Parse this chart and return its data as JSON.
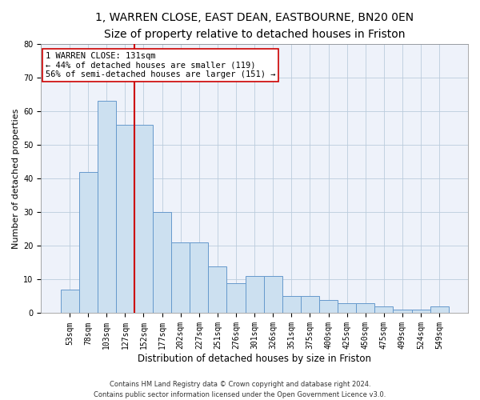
{
  "title": "1, WARREN CLOSE, EAST DEAN, EASTBOURNE, BN20 0EN",
  "subtitle": "Size of property relative to detached houses in Friston",
  "xlabel": "Distribution of detached houses by size in Friston",
  "ylabel": "Number of detached properties",
  "categories": [
    "53sqm",
    "78sqm",
    "103sqm",
    "127sqm",
    "152sqm",
    "177sqm",
    "202sqm",
    "227sqm",
    "251sqm",
    "276sqm",
    "301sqm",
    "326sqm",
    "351sqm",
    "375sqm",
    "400sqm",
    "425sqm",
    "450sqm",
    "475sqm",
    "499sqm",
    "524sqm",
    "549sqm"
  ],
  "bar_heights": [
    7,
    42,
    63,
    56,
    56,
    30,
    21,
    21,
    14,
    9,
    11,
    11,
    5,
    5,
    4,
    3,
    3,
    2,
    1,
    1,
    2
  ],
  "bar_color": "#cce0f0",
  "bar_edge_color": "#6699cc",
  "grid_color": "#bbccdd",
  "background_color": "#eef2fa",
  "vline_color": "#cc0000",
  "vline_pos": 3.5,
  "annotation_line1": "1 WARREN CLOSE: 131sqm",
  "annotation_line2": "← 44% of detached houses are smaller (119)",
  "annotation_line3": "56% of semi-detached houses are larger (151) →",
  "annotation_box_color": "white",
  "annotation_box_edge": "#cc0000",
  "ylim": [
    0,
    80
  ],
  "yticks": [
    0,
    10,
    20,
    30,
    40,
    50,
    60,
    70,
    80
  ],
  "footer1": "Contains HM Land Registry data © Crown copyright and database right 2024.",
  "footer2": "Contains public sector information licensed under the Open Government Licence v3.0.",
  "title_fontsize": 10,
  "subtitle_fontsize": 9,
  "xlabel_fontsize": 8.5,
  "ylabel_fontsize": 8,
  "tick_fontsize": 7,
  "footer_fontsize": 6,
  "annotation_fontsize": 7.5
}
